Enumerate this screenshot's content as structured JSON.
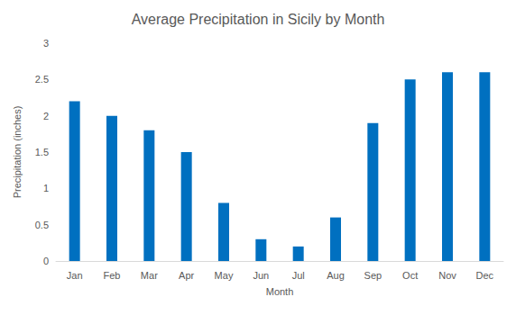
{
  "chart_data": {
    "type": "bar",
    "title": "Average Precipitation in Sicily by Month",
    "x_label": "Month",
    "y_label": "Precipitation (inches)",
    "categories": [
      "Jan",
      "Feb",
      "Mar",
      "Apr",
      "May",
      "Jun",
      "Jul",
      "Aug",
      "Sep",
      "Oct",
      "Nov",
      "Dec"
    ],
    "values": [
      2.2,
      2.0,
      1.8,
      1.5,
      0.8,
      0.3,
      0.2,
      0.6,
      1.9,
      2.5,
      2.6,
      2.6
    ],
    "color": "#0070c0",
    "ylim": [
      0,
      3
    ],
    "yticks": [
      0,
      0.5,
      1,
      1.5,
      2,
      2.5,
      3
    ],
    "grid": false
  }
}
